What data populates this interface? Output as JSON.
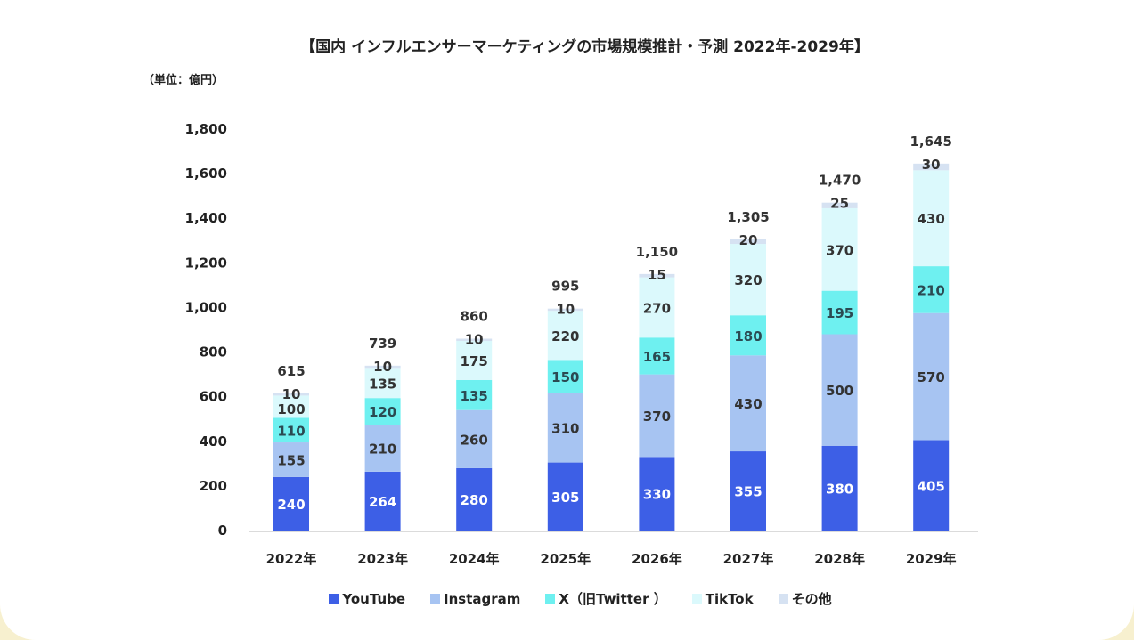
{
  "chart_data": {
    "type": "bar",
    "stacked": true,
    "title": "【国内 インフルエンサーマーケティングの市場規模推計・予測 2022年-2029年】",
    "unit_label": "（単位：億円）",
    "xlabel": "",
    "ylabel": "",
    "ylim": [
      0,
      1800
    ],
    "yticks": [
      0,
      200,
      400,
      600,
      800,
      1000,
      1200,
      1400,
      1600,
      1800
    ],
    "ytick_labels": [
      "0",
      "200",
      "400",
      "600",
      "800",
      "1,000",
      "1,200",
      "1,400",
      "1,600",
      "1,800"
    ],
    "categories": [
      "2022年",
      "2023年",
      "2024年",
      "2025年",
      "2026年",
      "2027年",
      "2028年",
      "2029年"
    ],
    "series": [
      {
        "name": "YouTube",
        "color": "#3d5fe6",
        "label_color": "#ffffff",
        "values": [
          240,
          264,
          280,
          305,
          330,
          355,
          380,
          405
        ]
      },
      {
        "name": "Instagram",
        "color": "#a7c4f2",
        "label_color": "#333333",
        "values": [
          155,
          210,
          260,
          310,
          370,
          430,
          500,
          570
        ]
      },
      {
        "name": "X（旧Twitter ）",
        "color": "#6ef0f0",
        "label_color": "#2b4a52",
        "values": [
          110,
          120,
          135,
          150,
          165,
          180,
          195,
          210
        ]
      },
      {
        "name": "TikTok",
        "color": "#dbf9fc",
        "label_color": "#333333",
        "values": [
          100,
          135,
          175,
          220,
          270,
          320,
          370,
          430
        ]
      },
      {
        "name": "その他",
        "color": "#d6e2f2",
        "label_color": "#333333",
        "values": [
          10,
          10,
          10,
          10,
          15,
          20,
          25,
          30
        ]
      }
    ],
    "totals": [
      615,
      739,
      860,
      995,
      1150,
      1305,
      1470,
      1645
    ],
    "total_labels": [
      "615",
      "739",
      "860",
      "995",
      "1,150",
      "1,305",
      "1,470",
      "1,645"
    ],
    "grid": false,
    "legend_position": "bottom"
  }
}
